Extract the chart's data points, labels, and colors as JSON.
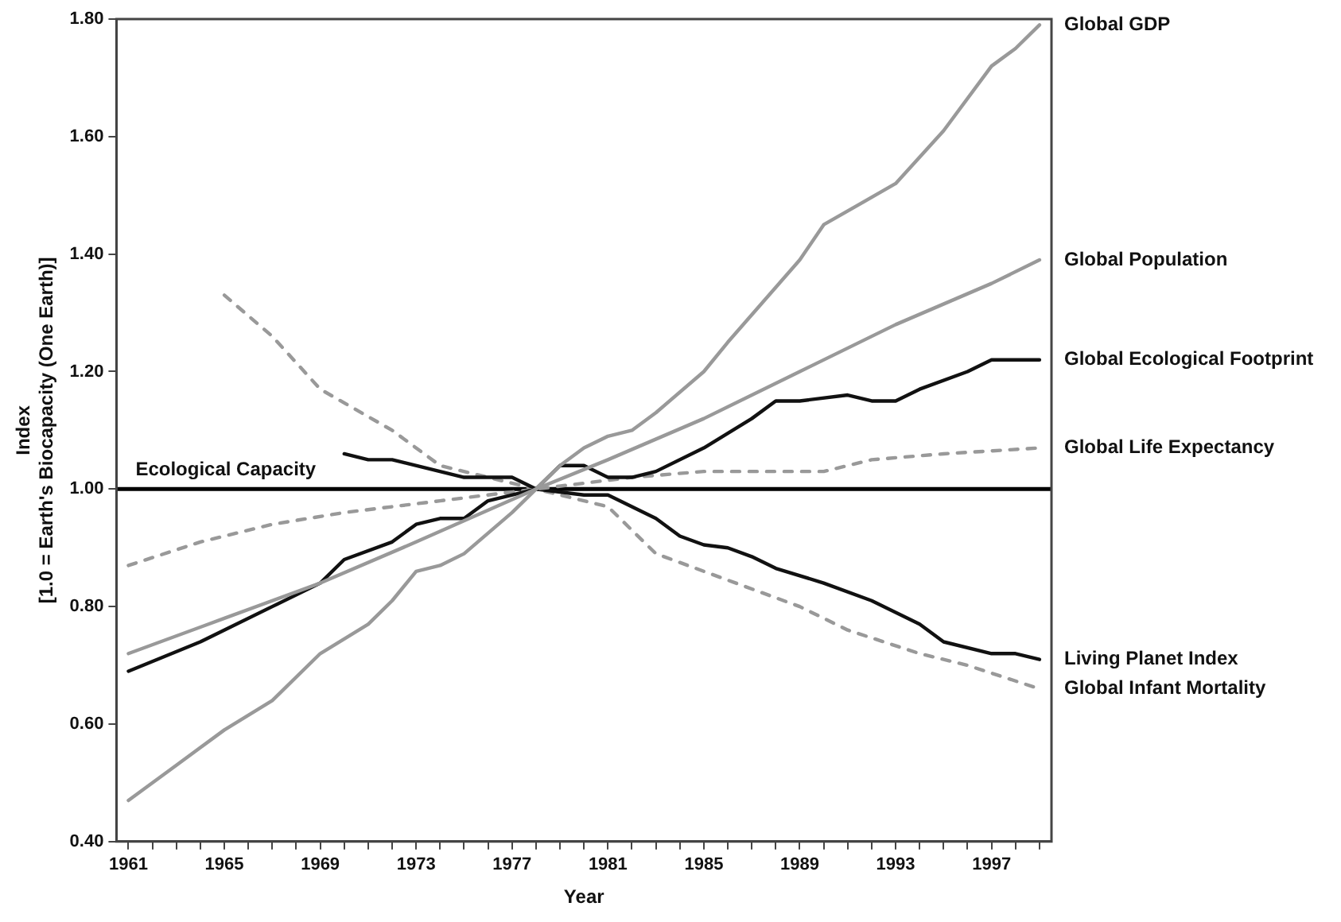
{
  "chart_data": {
    "type": "line",
    "xlabel": "Year",
    "ylabel": "Index\n[1.0 = Earth's Biocapacity (One Earth)]",
    "xlim": [
      1960.5,
      1999.5
    ],
    "xticks": [
      1961,
      {
        "value": 1962,
        "label": null
      },
      {
        "value": 1963,
        "label": null
      },
      {
        "value": 1964,
        "label": null
      },
      1965,
      {
        "value": 1966,
        "label": null
      },
      {
        "value": 1967,
        "label": null
      },
      {
        "value": 1968,
        "label": null
      },
      1969,
      {
        "value": 1970,
        "label": null
      },
      {
        "value": 1971,
        "label": null
      },
      {
        "value": 1972,
        "label": null
      },
      1973,
      {
        "value": 1974,
        "label": null
      },
      {
        "value": 1975,
        "label": null
      },
      {
        "value": 1976,
        "label": null
      },
      1977,
      {
        "value": 1978,
        "label": null
      },
      {
        "value": 1979,
        "label": null
      },
      {
        "value": 1980,
        "label": null
      },
      1981,
      {
        "value": 1982,
        "label": null
      },
      {
        "value": 1983,
        "label": null
      },
      {
        "value": 1984,
        "label": null
      },
      1985,
      {
        "value": 1986,
        "label": null
      },
      {
        "value": 1987,
        "label": null
      },
      {
        "value": 1988,
        "label": null
      },
      1989,
      {
        "value": 1990,
        "label": null
      },
      {
        "value": 1991,
        "label": null
      },
      {
        "value": 1992,
        "label": null
      },
      1993,
      {
        "value": 1994,
        "label": null
      },
      {
        "value": 1995,
        "label": null
      },
      {
        "value": 1996,
        "label": null
      },
      1997,
      {
        "value": 1998,
        "label": null
      },
      {
        "value": 1999,
        "label": null
      }
    ],
    "ylim": [
      0.4,
      1.8
    ],
    "yticks": [
      {
        "value": 0.4,
        "label": "0.40"
      },
      {
        "value": 0.6,
        "label": "0.60"
      },
      {
        "value": 0.8,
        "label": "0.80"
      },
      {
        "value": 1.0,
        "label": "1.00"
      },
      {
        "value": 1.2,
        "label": "1.20"
      },
      {
        "value": 1.4,
        "label": "1.40"
      },
      {
        "value": 1.6,
        "label": "1.60"
      },
      {
        "value": 1.8,
        "label": "1.80"
      }
    ],
    "grid": false,
    "legend": false,
    "marker": "none",
    "ref_lines": [
      {
        "axis": "y",
        "value": 1.0,
        "label": "Ecological Capacity",
        "color": "#000000",
        "line_style": "solid"
      }
    ],
    "series": [
      {
        "name": "Global GDP",
        "color": "#999999",
        "line_style": "solid",
        "x": [
          1961,
          1963,
          1965,
          1967,
          1969,
          1971,
          1972,
          1973,
          1974,
          1975,
          1977,
          1978,
          1979,
          1980,
          1981,
          1982,
          1983,
          1985,
          1986,
          1989,
          1990,
          1993,
          1995,
          1997,
          1998,
          1999
        ],
        "values": [
          0.47,
          0.53,
          0.59,
          0.64,
          0.72,
          0.77,
          0.81,
          0.86,
          0.87,
          0.89,
          0.96,
          1.0,
          1.04,
          1.07,
          1.09,
          1.1,
          1.13,
          1.2,
          1.25,
          1.39,
          1.45,
          1.52,
          1.61,
          1.72,
          1.75,
          1.79
        ]
      },
      {
        "name": "Global Population",
        "color": "#999999",
        "line_style": "solid",
        "x": [
          1961,
          1965,
          1969,
          1973,
          1978,
          1981,
          1985,
          1989,
          1993,
          1997,
          1999
        ],
        "values": [
          0.72,
          0.78,
          0.84,
          0.91,
          1.0,
          1.05,
          1.12,
          1.2,
          1.28,
          1.35,
          1.39
        ]
      },
      {
        "name": "Global Ecological Footprint",
        "color": "#111111",
        "line_style": "solid",
        "x": [
          1961,
          1964,
          1967,
          1969,
          1970,
          1972,
          1973,
          1974,
          1975,
          1976,
          1978,
          1979,
          1980,
          1981,
          1982,
          1983,
          1985,
          1987,
          1988,
          1989,
          1991,
          1992,
          1993,
          1994,
          1996,
          1997,
          1998,
          1999
        ],
        "values": [
          0.69,
          0.74,
          0.8,
          0.84,
          0.88,
          0.91,
          0.94,
          0.95,
          0.95,
          0.98,
          1.0,
          1.04,
          1.04,
          1.02,
          1.02,
          1.03,
          1.07,
          1.12,
          1.15,
          1.15,
          1.16,
          1.15,
          1.15,
          1.17,
          1.2,
          1.22,
          1.22,
          1.22
        ]
      },
      {
        "name": "Global Life Expectancy",
        "color": "#999999",
        "line_style": "dashed",
        "x": [
          1961,
          1964,
          1967,
          1970,
          1974,
          1978,
          1982,
          1985,
          1990,
          1992,
          1995,
          1999
        ],
        "values": [
          0.87,
          0.91,
          0.94,
          0.96,
          0.98,
          1.0,
          1.02,
          1.03,
          1.03,
          1.05,
          1.06,
          1.07
        ]
      },
      {
        "name": "Living Planet Index",
        "color": "#111111",
        "line_style": "solid",
        "x": [
          1970,
          1971,
          1972,
          1975,
          1977,
          1978,
          1980,
          1981,
          1983,
          1984,
          1985,
          1986,
          1987,
          1988,
          1990,
          1992,
          1994,
          1995,
          1997,
          1998,
          1999
        ],
        "values": [
          1.06,
          1.05,
          1.05,
          1.02,
          1.02,
          1.0,
          0.99,
          0.99,
          0.95,
          0.92,
          0.905,
          0.9,
          0.885,
          0.865,
          0.84,
          0.81,
          0.77,
          0.74,
          0.72,
          0.72,
          0.71
        ]
      },
      {
        "name": "Global Infant Mortality",
        "color": "#999999",
        "line_style": "dashed",
        "x": [
          1965,
          1967,
          1969,
          1972,
          1974,
          1978,
          1981,
          1983,
          1985,
          1987,
          1989,
          1991,
          1994,
          1996,
          1999
        ],
        "values": [
          1.33,
          1.26,
          1.17,
          1.1,
          1.04,
          1.0,
          0.97,
          0.89,
          0.86,
          0.83,
          0.8,
          0.76,
          0.72,
          0.7,
          0.66
        ]
      }
    ]
  }
}
